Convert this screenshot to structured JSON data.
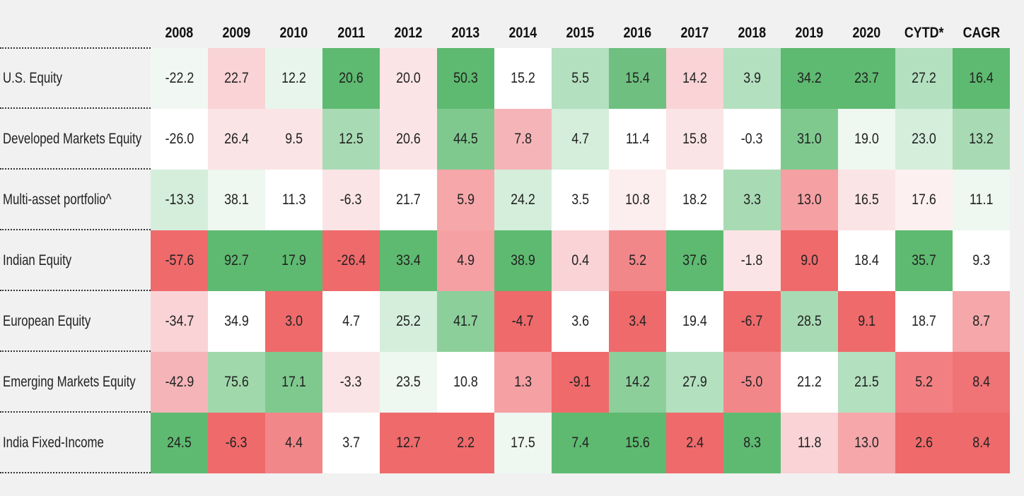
{
  "table": {
    "columns": [
      "2008",
      "2009",
      "2010",
      "2011",
      "2012",
      "2013",
      "2014",
      "2015",
      "2016",
      "2017",
      "2018",
      "2019",
      "2020",
      "CYTD*",
      "CAGR"
    ],
    "rows": [
      {
        "label": "U.S. Equity",
        "values": [
          "-22.2",
          "22.7",
          "12.2",
          "20.6",
          "20.0",
          "50.3",
          "15.2",
          "5.5",
          "15.4",
          "14.2",
          "3.9",
          "34.2",
          "23.7",
          "27.2",
          "16.4"
        ],
        "colors": [
          "#f1f8f3",
          "#f9d3d5",
          "#e8f5ec",
          "#5eba70",
          "#fbe4e6",
          "#5eba70",
          "#ffffff",
          "#b3e0bf",
          "#6fc080",
          "#f9d3d5",
          "#b3e0bf",
          "#5eba70",
          "#5eba70",
          "#b3e0bf",
          "#5eba70"
        ]
      },
      {
        "label": "Developed Markets Equity",
        "values": [
          "-26.0",
          "26.4",
          "9.5",
          "12.5",
          "20.6",
          "44.5",
          "7.8",
          "4.7",
          "11.4",
          "15.8",
          "-0.3",
          "31.0",
          "19.0",
          "23.0",
          "13.2"
        ],
        "colors": [
          "#ffffff",
          "#fbe4e6",
          "#fbe4e6",
          "#a8dbb4",
          "#fbe4e6",
          "#7fc98f",
          "#f5b5b8",
          "#d4eedb",
          "#ffffff",
          "#fbe4e6",
          "#ffffff",
          "#7fc98f",
          "#eef7f0",
          "#d4eedb",
          "#a8dbb4"
        ]
      },
      {
        "label": "Multi-asset portfolio^",
        "values": [
          "-13.3",
          "38.1",
          "11.3",
          "-6.3",
          "21.7",
          "5.9",
          "24.2",
          "3.5",
          "10.8",
          "18.2",
          "3.3",
          "13.0",
          "16.5",
          "17.6",
          "11.1"
        ],
        "colors": [
          "#d4eedb",
          "#eef7f0",
          "#ffffff",
          "#fbe4e6",
          "#ffffff",
          "#f5a7aa",
          "#d4eedb",
          "#ffffff",
          "#fcedee",
          "#ffffff",
          "#a8dbb4",
          "#f5a0a3",
          "#fbe4e6",
          "#fdf0f1",
          "#eef7f0"
        ]
      },
      {
        "label": "Indian Equity",
        "values": [
          "-57.6",
          "92.7",
          "17.9",
          "-26.4",
          "33.4",
          "4.9",
          "38.9",
          "0.4",
          "5.2",
          "37.6",
          "-1.8",
          "9.0",
          "18.4",
          "35.7",
          "9.3"
        ],
        "colors": [
          "#ef6a6b",
          "#5eba70",
          "#5eba70",
          "#ef6a6b",
          "#5eba70",
          "#f5a0a3",
          "#5eba70",
          "#f9d3d5",
          "#f2878a",
          "#5eba70",
          "#fbe4e6",
          "#ef6a6b",
          "#ffffff",
          "#5eba70",
          "#ffffff"
        ]
      },
      {
        "label": "European Equity",
        "values": [
          "-34.7",
          "34.9",
          "3.0",
          "4.7",
          "25.2",
          "41.7",
          "-4.7",
          "3.6",
          "3.4",
          "19.4",
          "-6.7",
          "28.5",
          "9.1",
          "18.7",
          "8.7"
        ],
        "colors": [
          "#f9d3d5",
          "#ffffff",
          "#ef6a6b",
          "#ffffff",
          "#d4eedb",
          "#8ccf9b",
          "#ef6a6b",
          "#ffffff",
          "#ef6a6b",
          "#ffffff",
          "#ef6a6b",
          "#a8dbb4",
          "#ef6a6b",
          "#ffffff",
          "#f5a7aa"
        ]
      },
      {
        "label": "Emerging Markets Equity",
        "values": [
          "-42.9",
          "75.6",
          "17.1",
          "-3.3",
          "23.5",
          "10.8",
          "1.3",
          "-9.1",
          "14.2",
          "27.9",
          "-5.0",
          "21.2",
          "21.5",
          "5.2",
          "8.4"
        ],
        "colors": [
          "#f5b5b8",
          "#a0d8ac",
          "#7fc98f",
          "#fbe4e6",
          "#eef7f0",
          "#ffffff",
          "#f5a0a3",
          "#ef6a6b",
          "#8ccf9b",
          "#b3e0bf",
          "#f2878a",
          "#ffffff",
          "#b3e0bf",
          "#f28083",
          "#f07476"
        ]
      },
      {
        "label": "India Fixed-Income",
        "values": [
          "24.5",
          "-6.3",
          "4.4",
          "3.7",
          "12.7",
          "2.2",
          "17.5",
          "7.4",
          "15.6",
          "2.4",
          "8.3",
          "11.8",
          "13.0",
          "2.6",
          "8.4"
        ],
        "colors": [
          "#5eba70",
          "#ef6a6b",
          "#f2878a",
          "#ffffff",
          "#ef6a6b",
          "#ef6a6b",
          "#eef7f0",
          "#5eba70",
          "#5eba70",
          "#ef6a6b",
          "#5eba70",
          "#f9d3d5",
          "#f5a7aa",
          "#ef6a6b",
          "#ef6a6b"
        ]
      }
    ]
  }
}
